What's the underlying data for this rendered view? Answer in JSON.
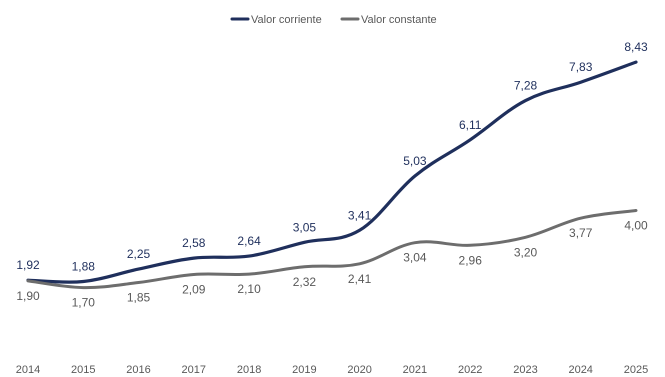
{
  "chart_data": {
    "type": "line",
    "title": "",
    "xlabel": "",
    "ylabel": "",
    "x": [
      "2014",
      "2015",
      "2016",
      "2017",
      "2018",
      "2019",
      "2020",
      "2021",
      "2022",
      "2023",
      "2024",
      "2025"
    ],
    "ylim": [
      0,
      9
    ],
    "grid": false,
    "legend_position": "top-center",
    "series": [
      {
        "name": "Valor corriente",
        "color": "#1f2f5c",
        "values": [
          1.92,
          1.88,
          2.25,
          2.58,
          2.64,
          3.05,
          3.41,
          5.03,
          6.11,
          7.28,
          7.83,
          8.43
        ],
        "labels": [
          "1,92",
          "1,88",
          "2,25",
          "2,58",
          "2,64",
          "3,05",
          "3,41",
          "5,03",
          "6,11",
          "7,28",
          "7,83",
          "8,43"
        ]
      },
      {
        "name": "Valor constante",
        "color": "#6d6d6d",
        "values": [
          1.9,
          1.7,
          1.85,
          2.09,
          2.1,
          2.32,
          2.41,
          3.04,
          2.96,
          3.2,
          3.77,
          4.0
        ],
        "labels": [
          "1,90",
          "1,70",
          "1,85",
          "2,09",
          "2,10",
          "2,32",
          "2,41",
          "3,04",
          "2,96",
          "3,20",
          "3,77",
          "4,00"
        ]
      }
    ]
  }
}
